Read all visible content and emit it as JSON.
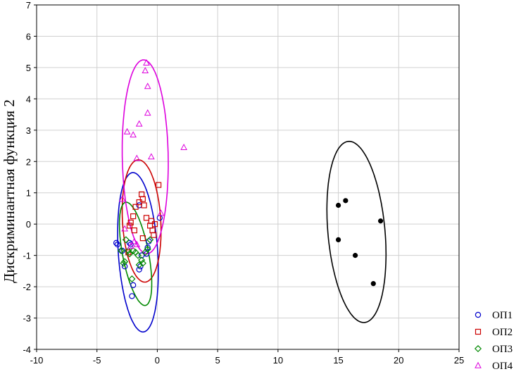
{
  "chart_data": {
    "type": "scatter",
    "title": "",
    "xlabel": "",
    "ylabel": "Дискриминантная функция 2",
    "xlim": [
      -10,
      25
    ],
    "ylim": [
      -4,
      7
    ],
    "xticks": [
      -10,
      -5,
      0,
      5,
      10,
      15,
      20,
      25
    ],
    "yticks": [
      -4,
      -3,
      -2,
      -1,
      0,
      1,
      2,
      3,
      4,
      5,
      6,
      7
    ],
    "grid": true,
    "legend_position": "bottom-right",
    "series": [
      {
        "name": "ОП1",
        "marker": "circle",
        "color": "#0000cc",
        "points": [
          [
            -3.4,
            -0.6
          ],
          [
            -3.3,
            -0.65
          ],
          [
            -2.9,
            -0.85
          ],
          [
            -2.7,
            -1.35
          ],
          [
            -2.3,
            -0.6
          ],
          [
            -2.2,
            -0.65
          ],
          [
            -2.0,
            -1.95
          ],
          [
            -2.1,
            -2.3
          ],
          [
            -1.5,
            -1.45
          ],
          [
            -1.4,
            -1.35
          ],
          [
            -1.3,
            -1.0
          ],
          [
            -0.9,
            -0.95
          ],
          [
            -0.8,
            -0.75
          ],
          [
            -0.7,
            -0.55
          ],
          [
            0.2,
            0.2
          ],
          [
            -1.5,
            0.6
          ]
        ],
        "ellipse": {
          "cx": -1.6,
          "cy": -0.9,
          "rx": 2.6,
          "ry": 1.6,
          "angle_deg": -75
        }
      },
      {
        "name": "ОП2",
        "marker": "square",
        "color": "#cc0000",
        "points": [
          [
            -2.3,
            -0.05
          ],
          [
            -2.2,
            0.05
          ],
          [
            -2.0,
            0.25
          ],
          [
            -1.9,
            -0.2
          ],
          [
            -1.8,
            0.55
          ],
          [
            -1.5,
            0.7
          ],
          [
            -1.3,
            0.95
          ],
          [
            -1.2,
            0.8
          ],
          [
            -1.1,
            0.6
          ],
          [
            -0.9,
            0.2
          ],
          [
            -0.6,
            -0.05
          ],
          [
            -0.5,
            0.1
          ],
          [
            -0.4,
            -0.2
          ],
          [
            -0.3,
            -0.35
          ],
          [
            -0.2,
            0.0
          ],
          [
            0.1,
            1.25
          ],
          [
            -1.2,
            -0.45
          ],
          [
            -2.4,
            -0.9
          ]
        ],
        "ellipse": {
          "cx": -1.3,
          "cy": 0.1,
          "rx": 2.0,
          "ry": 1.55,
          "angle_deg": -70
        }
      },
      {
        "name": "ОП3",
        "marker": "diamond",
        "color": "#008800",
        "points": [
          [
            -3.0,
            -0.85
          ],
          [
            -2.8,
            -1.25
          ],
          [
            -2.7,
            -1.2
          ],
          [
            -2.4,
            -0.85
          ],
          [
            -2.3,
            -0.95
          ],
          [
            -2.1,
            -1.75
          ],
          [
            -2.0,
            -0.85
          ],
          [
            -1.8,
            -0.9
          ],
          [
            -1.6,
            -1.0
          ],
          [
            -1.5,
            -1.3
          ],
          [
            -1.3,
            -1.15
          ],
          [
            -1.2,
            -1.25
          ],
          [
            -1.0,
            -0.9
          ],
          [
            -0.8,
            -0.8
          ],
          [
            -2.6,
            -0.5
          ],
          [
            -0.6,
            -0.5
          ]
        ],
        "ellipse": {
          "cx": -1.8,
          "cy": -0.95,
          "rx": 1.9,
          "ry": 0.95,
          "angle_deg": -55
        }
      },
      {
        "name": "ОП4",
        "marker": "triangle",
        "color": "#dd00dd",
        "points": [
          [
            -0.9,
            5.15
          ],
          [
            -1.0,
            4.9
          ],
          [
            -0.8,
            4.4
          ],
          [
            -0.8,
            3.55
          ],
          [
            -1.5,
            3.2
          ],
          [
            -2.5,
            2.95
          ],
          [
            -2.0,
            2.85
          ],
          [
            -1.7,
            2.1
          ],
          [
            -0.5,
            2.15
          ],
          [
            2.2,
            2.45
          ],
          [
            -2.9,
            0.8
          ],
          [
            0.3,
            0.35
          ],
          [
            -1.9,
            -0.55
          ],
          [
            -2.2,
            -0.7
          ],
          [
            -1.7,
            -0.65
          ],
          [
            -2.7,
            -0.15
          ]
        ],
        "ellipse": {
          "cx": -1.0,
          "cy": 2.15,
          "rx": 3.1,
          "ry": 1.9,
          "angle_deg": -86
        }
      },
      {
        "name": "",
        "marker": "filled-circle",
        "color": "#000000",
        "points": [
          [
            15.0,
            0.6
          ],
          [
            15.6,
            0.75
          ],
          [
            18.5,
            0.1
          ],
          [
            15.0,
            -0.5
          ],
          [
            16.4,
            -1.0
          ],
          [
            17.9,
            -1.9
          ]
        ],
        "ellipse": {
          "cx": 16.5,
          "cy": -0.25,
          "rx": 3.05,
          "ry": 2.25,
          "angle_deg": -62
        }
      }
    ]
  }
}
